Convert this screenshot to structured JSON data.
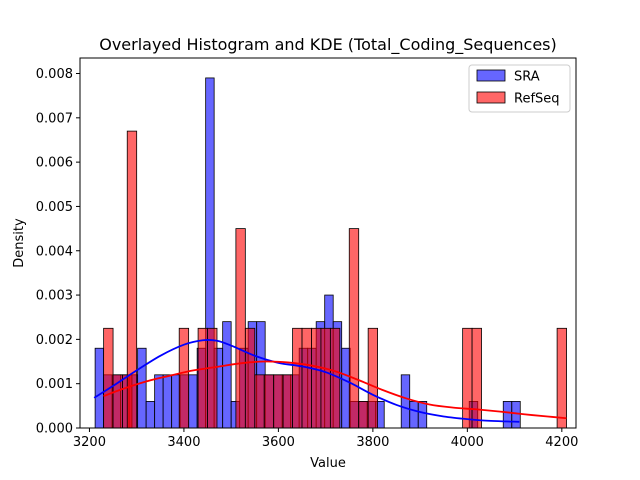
{
  "chart_data": {
    "type": "bar",
    "title": "Overlayed Histogram and KDE (Total_Coding_Sequences)",
    "xlabel": "Value",
    "ylabel": "Density",
    "xlim": [
      3180,
      4230
    ],
    "ylim": [
      0,
      0.00835
    ],
    "xticks": [
      3200,
      3400,
      3600,
      3800,
      4000,
      4200
    ],
    "xtick_labels": [
      "3200",
      "3400",
      "3600",
      "3800",
      "4000",
      "4200"
    ],
    "yticks": [
      0,
      0.001,
      0.002,
      0.003,
      0.004,
      0.005,
      0.006,
      0.007,
      0.008
    ],
    "ytick_labels": [
      "0.000",
      "0.001",
      "0.002",
      "0.003",
      "0.004",
      "0.005",
      "0.006",
      "0.007",
      "0.008"
    ],
    "legend_position": "top-right",
    "series": [
      {
        "name": "SRA",
        "color": "#0000ff",
        "bin_width": 18,
        "bins": [
          [
            3212,
            0.0018
          ],
          [
            3230,
            0.0012
          ],
          [
            3248,
            0.0012
          ],
          [
            3266,
            0.0012
          ],
          [
            3284,
            0.0012
          ],
          [
            3302,
            0.0018
          ],
          [
            3320,
            0.0006
          ],
          [
            3338,
            0.0012
          ],
          [
            3356,
            0.0012
          ],
          [
            3374,
            0.0012
          ],
          [
            3392,
            0.0012
          ],
          [
            3410,
            0.0012
          ],
          [
            3428,
            0.0018
          ],
          [
            3446,
            0.0079
          ],
          [
            3464,
            0.0018
          ],
          [
            3482,
            0.0024
          ],
          [
            3500,
            0.0006
          ],
          [
            3518,
            0.0018
          ],
          [
            3536,
            0.0024
          ],
          [
            3554,
            0.0024
          ],
          [
            3572,
            0.0012
          ],
          [
            3590,
            0.0012
          ],
          [
            3608,
            0.0012
          ],
          [
            3626,
            0.0012
          ],
          [
            3644,
            0.0018
          ],
          [
            3662,
            0.0018
          ],
          [
            3680,
            0.0024
          ],
          [
            3698,
            0.003
          ],
          [
            3716,
            0.0024
          ],
          [
            3734,
            0.0018
          ],
          [
            3752,
            0.0006
          ],
          [
            3770,
            0.0006
          ],
          [
            3788,
            0.0006
          ],
          [
            3806,
            0.0006
          ],
          [
            3860,
            0.0012
          ],
          [
            3878,
            0.0006
          ],
          [
            3896,
            0.0006
          ],
          [
            4004,
            0.0006
          ],
          [
            4076,
            0.0006
          ],
          [
            4094,
            0.0006
          ]
        ],
        "kde": {
          "x": [
            3210,
            3250,
            3300,
            3350,
            3400,
            3440,
            3470,
            3500,
            3550,
            3600,
            3650,
            3700,
            3750,
            3800,
            3850,
            3900,
            3950,
            4000,
            4050,
            4110
          ],
          "y": [
            0.00068,
            0.00095,
            0.0013,
            0.00163,
            0.00188,
            0.00198,
            0.00197,
            0.00186,
            0.00163,
            0.00147,
            0.00139,
            0.00126,
            0.00103,
            0.00075,
            0.00052,
            0.00036,
            0.00026,
            0.0002,
            0.00016,
            0.00014
          ]
        }
      },
      {
        "name": "RefSeq",
        "color": "#ff0000",
        "bin_width": 20,
        "bins": [
          [
            3230,
            0.00225
          ],
          [
            3250,
            0.0012
          ],
          [
            3270,
            0.0012
          ],
          [
            3280,
            0.0067
          ],
          [
            3390,
            0.00225
          ],
          [
            3430,
            0.00225
          ],
          [
            3450,
            0.00225
          ],
          [
            3510,
            0.0045
          ],
          [
            3530,
            0.00225
          ],
          [
            3550,
            0.0012
          ],
          [
            3570,
            0.0012
          ],
          [
            3590,
            0.0012
          ],
          [
            3610,
            0.0012
          ],
          [
            3630,
            0.00225
          ],
          [
            3650,
            0.00225
          ],
          [
            3670,
            0.00225
          ],
          [
            3690,
            0.00225
          ],
          [
            3710,
            0.00225
          ],
          [
            3750,
            0.0045
          ],
          [
            3770,
            0.0006
          ],
          [
            3790,
            0.00225
          ],
          [
            3990,
            0.00225
          ],
          [
            4010,
            0.00225
          ],
          [
            4190,
            0.00225
          ]
        ],
        "kde": {
          "x": [
            3230,
            3270,
            3320,
            3370,
            3420,
            3470,
            3520,
            3570,
            3620,
            3670,
            3720,
            3770,
            3820,
            3870,
            3920,
            3970,
            4020,
            4070,
            4120,
            4170,
            4210
          ],
          "y": [
            0.00072,
            0.00088,
            0.00105,
            0.00118,
            0.0013,
            0.00138,
            0.00146,
            0.0015,
            0.00148,
            0.00141,
            0.00128,
            0.00108,
            0.00086,
            0.00067,
            0.00053,
            0.00046,
            0.00042,
            0.00037,
            0.00031,
            0.00026,
            0.00022
          ]
        }
      }
    ]
  }
}
